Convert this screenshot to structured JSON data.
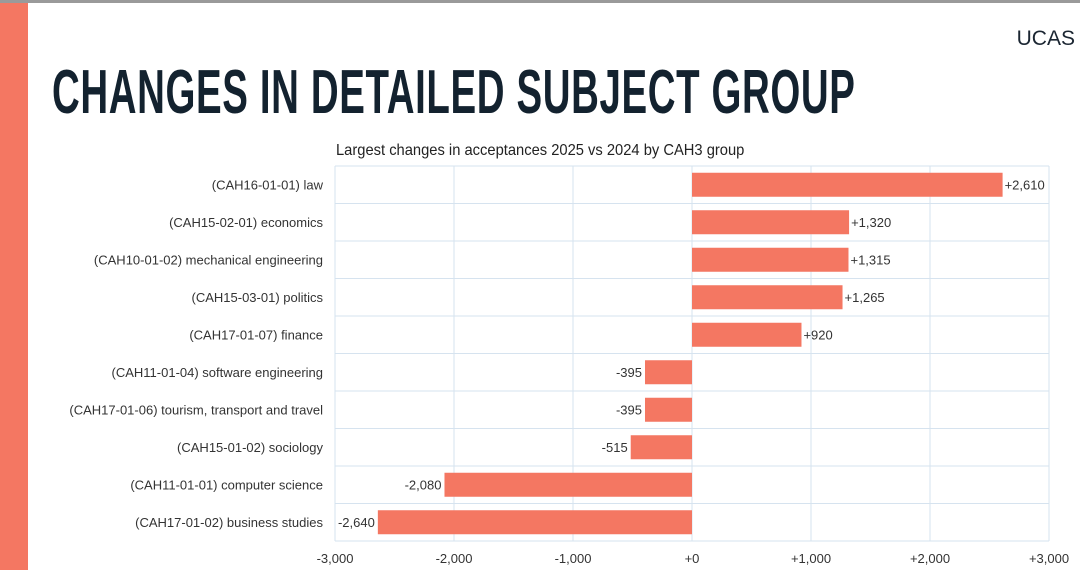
{
  "logo": "UCAS",
  "page_title": "CHANGES IN DETAILED SUBJECT GROUP",
  "colors": {
    "bar": "#f47762",
    "accent": "#f47762",
    "grid": "#d6e3ef",
    "title": "#13222f"
  },
  "chart_data": {
    "type": "bar",
    "orientation": "horizontal",
    "title": "Largest changes in acceptances 2025 vs 2024 by CAH3 group",
    "categories": [
      "(CAH16-01-01) law",
      "(CAH15-02-01) economics",
      "(CAH10-01-02) mechanical engineering",
      "(CAH15-03-01) politics",
      "(CAH17-01-07) finance",
      "(CAH11-01-04) software engineering",
      "(CAH17-01-06) tourism, transport and travel",
      "(CAH15-01-02) sociology",
      "(CAH11-01-01) computer science",
      "(CAH17-01-02) business studies"
    ],
    "values": [
      2610,
      1320,
      1315,
      1265,
      920,
      -395,
      -395,
      -515,
      -2080,
      -2640
    ],
    "value_labels": [
      "+2,610",
      "+1,320",
      "+1,315",
      "+1,265",
      "+920",
      "-395",
      "-395",
      "-515",
      "-2,080",
      "-2,640"
    ],
    "xlim": [
      -3000,
      3000
    ],
    "xticks": [
      -3000,
      -2000,
      -1000,
      0,
      1000,
      2000,
      3000
    ],
    "xtick_labels": [
      "-3,000",
      "-2,000",
      "-1,000",
      "+0",
      "+1,000",
      "+2,000",
      "+3,000"
    ],
    "grid": true,
    "xlabel": "",
    "ylabel": ""
  }
}
